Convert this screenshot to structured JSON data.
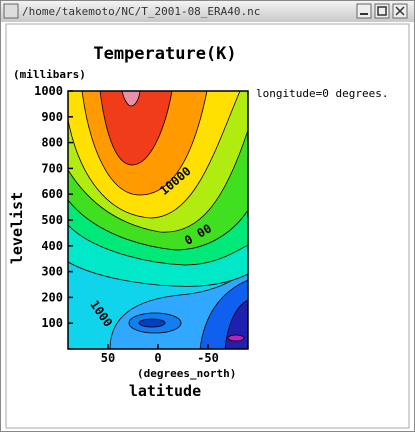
{
  "window": {
    "title": "/home/takemoto/NC/T_2001-08_ERA40.nc"
  },
  "chart_data": {
    "type": "contour",
    "title": "Temperature(K)",
    "y_units": "(millibars)",
    "y_label": "levelist",
    "x_units": "(degrees_north)",
    "x_label": "latitude",
    "annotation": "longitude=0 degrees.",
    "xlim": [
      90,
      -90
    ],
    "xticks": [
      50,
      0,
      -50
    ],
    "ylim": [
      0,
      1000
    ],
    "yticks": [
      100,
      200,
      300,
      400,
      500,
      600,
      700,
      800,
      900,
      1000
    ],
    "contour_labels": [
      "10000",
      "0 00",
      "1000"
    ]
  }
}
